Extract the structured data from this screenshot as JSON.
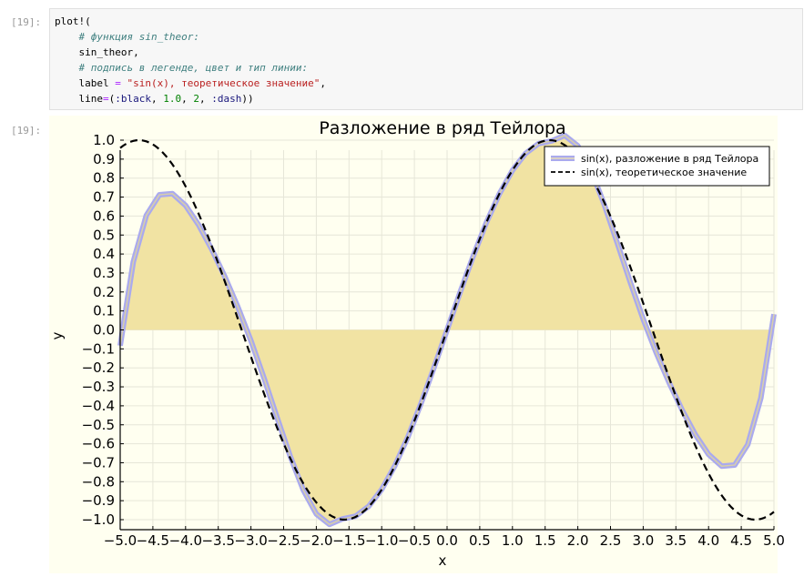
{
  "cell": {
    "in_prompt": "[19]:",
    "out_prompt": "[19]:",
    "code": {
      "line1": "plot!(",
      "line2_comment": "# функция sin_theor:",
      "line3": "sin_theor,",
      "line4_comment": "# подпись в легенде, цвет и тип линии:",
      "line5_key": "label",
      "line5_op": " = ",
      "line5_str": "\"sin(x), теоретическое значение\"",
      "line5_comma": ",",
      "line6_key": "line",
      "line6_op": "=",
      "line6_open": "(",
      "line6_sym1": ":black",
      "line6_sep1": ", ",
      "line6_num1": "1.0",
      "line6_sep2": ", ",
      "line6_num2": "2",
      "line6_sep3": ", ",
      "line6_sym2": ":dash",
      "line6_close": "))"
    }
  },
  "chart_data": {
    "type": "line",
    "title": "Разложение в ряд Тейлора",
    "xlabel": "x",
    "ylabel": "y",
    "xlim": [
      -5.0,
      5.0
    ],
    "ylim": [
      -1.0,
      1.0
    ],
    "grid": true,
    "legend_position": "top-right",
    "x_ticks": [
      "−5.0",
      "−4.5",
      "−4.0",
      "−3.5",
      "−3.0",
      "−2.5",
      "−2.0",
      "−1.5",
      "−1.0",
      "−0.5",
      "0.0",
      "0.5",
      "1.0",
      "1.5",
      "2.0",
      "2.5",
      "3.0",
      "3.5",
      "4.0",
      "4.5",
      "5.0"
    ],
    "y_ticks": [
      "1.0",
      "0.9",
      "0.8",
      "0.7",
      "0.6",
      "0.5",
      "0.4",
      "0.3",
      "0.2",
      "0.1",
      "0.0",
      "−0.1",
      "−0.2",
      "−0.3",
      "−0.4",
      "−0.5",
      "−0.6",
      "−0.7",
      "−0.8",
      "−0.9",
      "−1.0"
    ],
    "background_color": "#fffff0",
    "fill_color": "#f1e3a3",
    "series": [
      {
        "name": "sin(x), разложение в ряд Тейлора",
        "color": "#aaaaee",
        "style": "solid-with-fill",
        "x": [
          -5.0,
          -4.8,
          -4.6,
          -4.4,
          -4.2,
          -4.0,
          -3.8,
          -3.6,
          -3.4,
          -3.2,
          -3.0,
          -2.8,
          -2.6,
          -2.4,
          -2.2,
          -2.0,
          -1.8,
          -1.6,
          -1.4,
          -1.2,
          -1.0,
          -0.8,
          -0.6,
          -0.4,
          -0.2,
          0.0,
          0.2,
          0.4,
          0.6,
          0.8,
          1.0,
          1.2,
          1.4,
          1.6,
          1.8,
          2.0,
          2.2,
          2.4,
          2.6,
          2.8,
          3.0,
          3.2,
          3.4,
          3.6,
          3.8,
          4.0,
          4.2,
          4.4,
          4.6,
          4.8,
          5.0
        ],
        "y": [
          -0.083,
          0.358,
          0.604,
          0.712,
          0.718,
          0.656,
          0.553,
          0.425,
          0.281,
          0.121,
          -0.057,
          -0.254,
          -0.462,
          -0.665,
          -0.843,
          -0.97,
          -1.025,
          -0.996,
          -0.982,
          -0.93,
          -0.841,
          -0.717,
          -0.565,
          -0.389,
          -0.199,
          0.0,
          0.199,
          0.389,
          0.565,
          0.717,
          0.841,
          0.93,
          0.982,
          0.996,
          1.025,
          0.97,
          0.843,
          0.665,
          0.462,
          0.254,
          0.057,
          -0.121,
          -0.281,
          -0.425,
          -0.553,
          -0.656,
          -0.718,
          -0.712,
          -0.604,
          -0.358,
          0.083
        ]
      },
      {
        "name": "sin(x), теоретическое значение",
        "color": "#000000",
        "style": "dash",
        "function": "sin"
      }
    ]
  }
}
